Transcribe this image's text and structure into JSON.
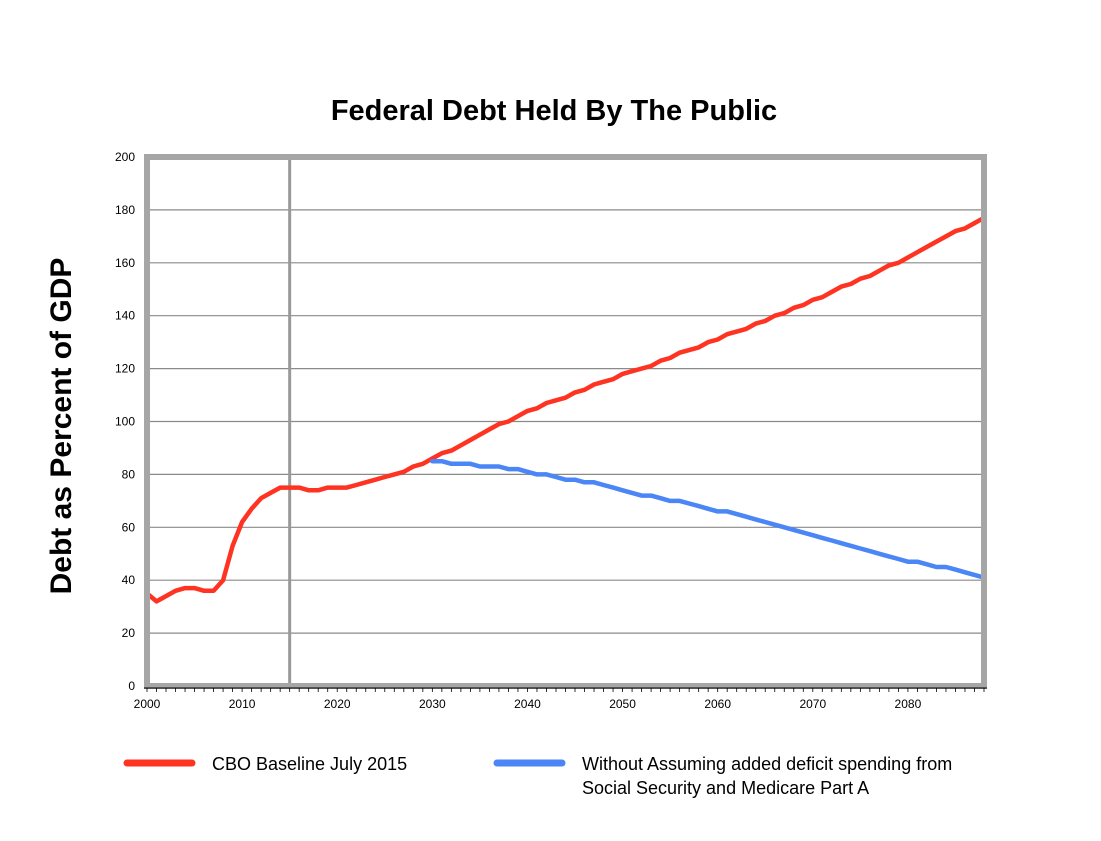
{
  "chart_data": {
    "type": "line",
    "title": "Federal Debt Held By The Public",
    "xlabel": "",
    "ylabel": "Debt as Percent of GDP",
    "xlim": [
      2000,
      2088
    ],
    "ylim": [
      0,
      200
    ],
    "x_ticks": [
      2000,
      2010,
      2020,
      2030,
      2040,
      2050,
      2060,
      2070,
      2080
    ],
    "y_ticks": [
      0,
      20,
      40,
      60,
      80,
      100,
      120,
      140,
      160,
      180,
      200
    ],
    "grid": true,
    "vertical_marker_x": 2015,
    "legend_position": "bottom",
    "series": [
      {
        "name": "CBO Baseline July 2015",
        "color": "#ff3322",
        "points": [
          [
            2000,
            35
          ],
          [
            2001,
            32
          ],
          [
            2002,
            34
          ],
          [
            2003,
            36
          ],
          [
            2004,
            37
          ],
          [
            2005,
            37
          ],
          [
            2006,
            36
          ],
          [
            2007,
            36
          ],
          [
            2008,
            40
          ],
          [
            2009,
            53
          ],
          [
            2010,
            62
          ],
          [
            2011,
            67
          ],
          [
            2012,
            71
          ],
          [
            2013,
            73
          ],
          [
            2014,
            75
          ],
          [
            2015,
            75
          ],
          [
            2016,
            75
          ],
          [
            2017,
            74
          ],
          [
            2018,
            74
          ],
          [
            2019,
            75
          ],
          [
            2020,
            75
          ],
          [
            2021,
            75
          ],
          [
            2022,
            76
          ],
          [
            2023,
            77
          ],
          [
            2024,
            78
          ],
          [
            2025,
            79
          ],
          [
            2026,
            80
          ],
          [
            2027,
            81
          ],
          [
            2028,
            83
          ],
          [
            2029,
            84
          ],
          [
            2030,
            86
          ],
          [
            2031,
            88
          ],
          [
            2032,
            89
          ],
          [
            2033,
            91
          ],
          [
            2034,
            93
          ],
          [
            2035,
            95
          ],
          [
            2036,
            97
          ],
          [
            2037,
            99
          ],
          [
            2038,
            100
          ],
          [
            2039,
            102
          ],
          [
            2040,
            104
          ],
          [
            2041,
            105
          ],
          [
            2042,
            107
          ],
          [
            2043,
            108
          ],
          [
            2044,
            109
          ],
          [
            2045,
            111
          ],
          [
            2046,
            112
          ],
          [
            2047,
            114
          ],
          [
            2048,
            115
          ],
          [
            2049,
            116
          ],
          [
            2050,
            118
          ],
          [
            2051,
            119
          ],
          [
            2052,
            120
          ],
          [
            2053,
            121
          ],
          [
            2054,
            123
          ],
          [
            2055,
            124
          ],
          [
            2056,
            126
          ],
          [
            2057,
            127
          ],
          [
            2058,
            128
          ],
          [
            2059,
            130
          ],
          [
            2060,
            131
          ],
          [
            2061,
            133
          ],
          [
            2062,
            134
          ],
          [
            2063,
            135
          ],
          [
            2064,
            137
          ],
          [
            2065,
            138
          ],
          [
            2066,
            140
          ],
          [
            2067,
            141
          ],
          [
            2068,
            143
          ],
          [
            2069,
            144
          ],
          [
            2070,
            146
          ],
          [
            2071,
            147
          ],
          [
            2072,
            149
          ],
          [
            2073,
            151
          ],
          [
            2074,
            152
          ],
          [
            2075,
            154
          ],
          [
            2076,
            155
          ],
          [
            2077,
            157
          ],
          [
            2078,
            159
          ],
          [
            2079,
            160
          ],
          [
            2080,
            162
          ],
          [
            2081,
            164
          ],
          [
            2082,
            166
          ],
          [
            2083,
            168
          ],
          [
            2084,
            170
          ],
          [
            2085,
            172
          ],
          [
            2086,
            173
          ],
          [
            2087,
            175
          ],
          [
            2088,
            177
          ]
        ]
      },
      {
        "name": "Without  Assuming added deficit spending from Social Security and Medicare Part A",
        "color": "#4a86f5",
        "points": [
          [
            2030,
            85
          ],
          [
            2031,
            85
          ],
          [
            2032,
            84
          ],
          [
            2033,
            84
          ],
          [
            2034,
            84
          ],
          [
            2035,
            83
          ],
          [
            2036,
            83
          ],
          [
            2037,
            83
          ],
          [
            2038,
            82
          ],
          [
            2039,
            82
          ],
          [
            2040,
            81
          ],
          [
            2041,
            80
          ],
          [
            2042,
            80
          ],
          [
            2043,
            79
          ],
          [
            2044,
            78
          ],
          [
            2045,
            78
          ],
          [
            2046,
            77
          ],
          [
            2047,
            77
          ],
          [
            2048,
            76
          ],
          [
            2049,
            75
          ],
          [
            2050,
            74
          ],
          [
            2051,
            73
          ],
          [
            2052,
            72
          ],
          [
            2053,
            72
          ],
          [
            2054,
            71
          ],
          [
            2055,
            70
          ],
          [
            2056,
            70
          ],
          [
            2057,
            69
          ],
          [
            2058,
            68
          ],
          [
            2059,
            67
          ],
          [
            2060,
            66
          ],
          [
            2061,
            66
          ],
          [
            2062,
            65
          ],
          [
            2063,
            64
          ],
          [
            2064,
            63
          ],
          [
            2065,
            62
          ],
          [
            2066,
            61
          ],
          [
            2067,
            60
          ],
          [
            2068,
            59
          ],
          [
            2069,
            58
          ],
          [
            2070,
            57
          ],
          [
            2071,
            56
          ],
          [
            2072,
            55
          ],
          [
            2073,
            54
          ],
          [
            2074,
            53
          ],
          [
            2075,
            52
          ],
          [
            2076,
            51
          ],
          [
            2077,
            50
          ],
          [
            2078,
            49
          ],
          [
            2079,
            48
          ],
          [
            2080,
            47
          ],
          [
            2081,
            47
          ],
          [
            2082,
            46
          ],
          [
            2083,
            45
          ],
          [
            2084,
            45
          ],
          [
            2085,
            44
          ],
          [
            2086,
            43
          ],
          [
            2087,
            42
          ],
          [
            2088,
            41
          ]
        ]
      }
    ]
  },
  "legend": [
    {
      "lines": [
        "CBO Baseline July 2015"
      ],
      "color": "#ff3322"
    },
    {
      "lines": [
        "Without  Assuming added deficit spending from",
        "Social Security and Medicare Part A"
      ],
      "color": "#4a86f5"
    }
  ]
}
